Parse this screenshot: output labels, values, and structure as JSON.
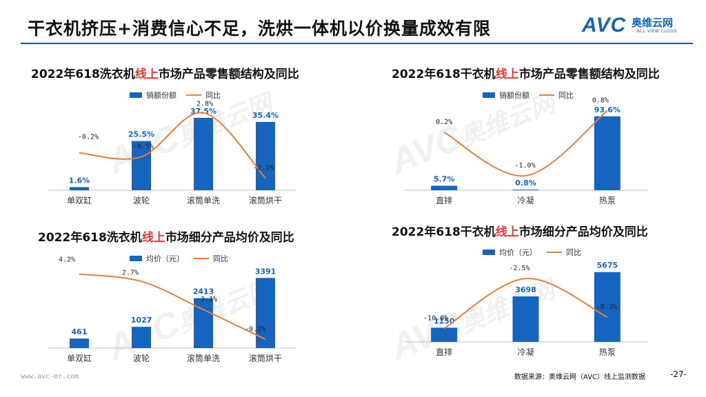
{
  "page": {
    "title": "干衣机挤压+消费信心不足，洗烘一体机以价换量成效有限",
    "logo_main": "AVC",
    "logo_cn": "奥维云网",
    "logo_en": "ALL VIEW CLOUD",
    "watermark_cn": "奥维云网",
    "watermark_en": "ALL VIEW CLOUD",
    "footer_url": "www.avc-mr.com",
    "footer_source": "数据来源：奥维云网（AVC）线上监测数据",
    "page_number": "-27-",
    "colors": {
      "bar": "#1565c0",
      "line": "#ed7d31",
      "accent_red": "#e53935",
      "title_rule": "#1f4fa3"
    }
  },
  "charts": {
    "wash_share": {
      "prefix": "2022年618洗衣机",
      "highlight": "线上",
      "suffix": "市场产品零售额结构及同比"
    },
    "dry_share": {
      "prefix": "2022年618干衣机",
      "highlight": "线上",
      "suffix": "市场产品零售额结构及同比"
    },
    "wash_price": {
      "prefix": "2022年618洗衣机",
      "highlight": "线上",
      "suffix": "市场细分产品均价及同比"
    },
    "dry_price": {
      "prefix": "2022年618干衣机",
      "highlight": "线上",
      "suffix": "市场细分产品均价及同比"
    }
  },
  "chart_data": [
    {
      "id": "wash_share",
      "type": "bar",
      "title": "2022年618洗衣机线上市场产品零售额结构及同比",
      "categories": [
        "单双缸",
        "波轮",
        "滚筒单洗",
        "滚筒烘干"
      ],
      "series": [
        {
          "name": "销额份额",
          "kind": "bar",
          "values": [
            1.6,
            25.5,
            37.5,
            35.4
          ],
          "labels": [
            "1.6%",
            "25.5%",
            "37.5%",
            "35.4%"
          ]
        },
        {
          "name": "同比",
          "kind": "line",
          "values": [
            -0.2,
            -0.5,
            2.8,
            -2.1
          ],
          "labels": [
            "-0.2%",
            "-0.5%",
            "2.8%",
            "-2.1%"
          ]
        }
      ],
      "ylim": [
        0,
        45
      ],
      "y2lim": [
        -3,
        3.5
      ]
    },
    {
      "id": "dry_share",
      "type": "bar",
      "title": "2022年618干衣机线上市场产品零售额结构及同比",
      "categories": [
        "直排",
        "冷凝",
        "热泵"
      ],
      "series": [
        {
          "name": "销额份额",
          "kind": "bar",
          "values": [
            5.7,
            0.8,
            93.6
          ],
          "labels": [
            "5.7%",
            "0.8%",
            "93.6%"
          ]
        },
        {
          "name": "同比",
          "kind": "line",
          "values": [
            0.2,
            -1.0,
            0.8
          ],
          "labels": [
            "0.2%",
            "-1.0%",
            "0.8%"
          ]
        }
      ],
      "ylim": [
        0,
        110
      ],
      "y2lim": [
        -1.4,
        1.0
      ]
    },
    {
      "id": "wash_price",
      "type": "bar",
      "title": "2022年618洗衣机线上市场细分产品均价及同比",
      "categories": [
        "单双缸",
        "波轮",
        "滚筒单洗",
        "滚筒烘干"
      ],
      "series": [
        {
          "name": "均价（元）",
          "kind": "bar",
          "values": [
            461,
            1027,
            2413,
            3391
          ],
          "labels": [
            "461",
            "1027",
            "2413",
            "3391"
          ]
        },
        {
          "name": "同比",
          "kind": "line",
          "values": [
            4.2,
            2.7,
            -3.1,
            -9.2
          ],
          "labels": [
            "4.2%",
            "2.7%",
            "-3.1%",
            "-9.2%"
          ]
        }
      ],
      "ylim": [
        0,
        4000
      ],
      "y2lim": [
        -11,
        6
      ]
    },
    {
      "id": "dry_price",
      "type": "bar",
      "title": "2022年618干衣机线上市场细分产品均价及同比",
      "categories": [
        "直排",
        "冷凝",
        "热泵"
      ],
      "series": [
        {
          "name": "均价（元）",
          "kind": "bar",
          "values": [
            1150,
            3698,
            5675
          ],
          "labels": [
            "1150",
            "3698",
            "5675"
          ]
        },
        {
          "name": "同比",
          "kind": "line",
          "values": [
            -10.0,
            -2.5,
            -8.3
          ],
          "labels": [
            "-10.0%",
            "-2.5%",
            "-8.3%"
          ]
        }
      ],
      "ylim": [
        0,
        6500
      ],
      "y2lim": [
        -12,
        0
      ]
    }
  ]
}
